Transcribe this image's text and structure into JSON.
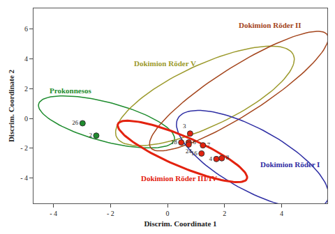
{
  "chart_data": {
    "type": "scatter",
    "xlabel": "Discrim. Coordinate 1",
    "ylabel": "Discrim. Coordinate 2",
    "xlim": [
      -4.7,
      5.6
    ],
    "ylim": [
      -5.7,
      7.4
    ],
    "xticks": [
      {
        "value": -4,
        "label": "- 4"
      },
      {
        "value": -2,
        "label": "- 2"
      },
      0,
      2,
      4
    ],
    "yticks": [
      {
        "value": -4,
        "label": "- 4"
      },
      {
        "value": -2,
        "label": "- 2"
      },
      0,
      2,
      4,
      6
    ],
    "grid": false,
    "series": [
      {
        "name": "Prokonnesos",
        "color": "#1e8c2e",
        "ellipse": {
          "center": [
            -2.14,
            -0.23
          ],
          "axis_1": [
            2.38,
            -1.01
          ],
          "axis_2": [
            -0.17,
            1.43
          ]
        },
        "x": [
          -2.98,
          -2.5
        ],
        "y": [
          -0.32,
          -1.15
        ],
        "labels": [
          "26",
          "2"
        ]
      },
      {
        "name": "Dokimion Röder V",
        "color": "#9c9a2c",
        "ellipse": {
          "center": [
            1.31,
            1.52
          ],
          "axis_1": [
            3.1,
            2.76
          ],
          "axis_2": [
            0.45,
            -1.89
          ]
        }
      },
      {
        "name": "Dokimion Röder II",
        "color": "#a4451c",
        "ellipse": {
          "center": [
            2.5,
            1.84
          ],
          "axis_1": [
            3.1,
            3.78
          ],
          "axis_2": [
            0.45,
            -1.36
          ]
        }
      },
      {
        "name": "Dokimion Röder I",
        "color": "#2e2ea4",
        "ellipse": {
          "center": [
            2.98,
            -2.76
          ],
          "axis_1": [
            2.62,
            -2.76
          ],
          "axis_2": [
            -0.51,
            -1.82
          ]
        }
      },
      {
        "name": "Dokimion Röder III/IV",
        "color": "#e3220f",
        "ellipse": {
          "center": [
            0.52,
            -2.21
          ],
          "axis_1": [
            2.26,
            -1.84
          ],
          "axis_2": [
            -0.2,
            -0.93
          ]
        },
        "x": [
          0.79,
          0.74,
          0.48,
          0.74,
          1.24,
          1.19,
          1.71,
          1.9
        ],
        "y": [
          -1.01,
          -1.61,
          -1.61,
          -1.75,
          -1.8,
          -2.35,
          -2.72,
          -2.67
        ],
        "labels": [
          "3",
          "6",
          "18",
          "24",
          "7",
          "16",
          "4",
          "8"
        ]
      }
    ]
  }
}
